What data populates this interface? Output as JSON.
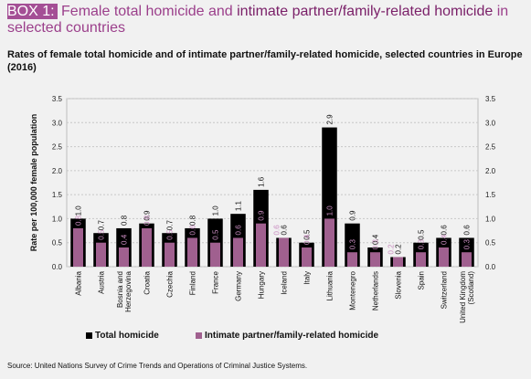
{
  "header": {
    "box_label": "BOX 1:",
    "title_pre": " Female total homicide and ",
    "title_highlight": "intimate partner/family-related homicide",
    "title_post": " in selected countries",
    "subtitle": "Rates of female total homicide and of intimate partner/family-related homicide, selected countries in Europe (2016)"
  },
  "colors": {
    "total": "#000000",
    "ipfr": "#a0608f",
    "ipfr_label": "#c98cc0"
  },
  "legend": {
    "total_label": "Total homicide",
    "ipfr_label": "Intimate partner/family-related homicide"
  },
  "source": "Source: United Nations Survey of Crime Trends and Operations of Criminal Justice Systems.",
  "chart_data": {
    "type": "bar",
    "ylabel": "Rate per 100,000 female population",
    "ylim": [
      0,
      3.5
    ],
    "yticks": [
      "0.0",
      "0.5",
      "1.0",
      "1.5",
      "2.0",
      "2.5",
      "3.0",
      "3.5"
    ],
    "grid": true,
    "categories": [
      "Albania",
      "Austria",
      "Bosnia and Herzegovina",
      "Croatia",
      "Czechia",
      "Finland",
      "France",
      "Germany",
      "Hungary",
      "Iceland",
      "Italy",
      "Lithuania",
      "Montenegro",
      "Netherlands",
      "Slovenia",
      "Spain",
      "Switzerland",
      "United Kingdom (Scotland)"
    ],
    "series": [
      {
        "name": "Total homicide",
        "values": [
          1.0,
          0.7,
          0.8,
          0.9,
          0.7,
          0.8,
          1.0,
          1.1,
          1.6,
          0.6,
          0.5,
          2.9,
          0.9,
          0.4,
          0.2,
          0.5,
          0.6,
          0.6
        ],
        "labels": [
          "1.0",
          "0.7",
          "0.8",
          "0.9",
          "0.7",
          "0.8",
          "1.0",
          "1.1",
          "1.6",
          "0.6",
          "0.5",
          "2.9",
          "0.9",
          "0.4",
          "0.2",
          "0.5",
          "0.6",
          "0.6"
        ]
      },
      {
        "name": "Intimate partner/family-related homicide",
        "values": [
          0.8,
          0.5,
          0.4,
          0.8,
          0.5,
          0.6,
          0.5,
          0.6,
          0.9,
          0.6,
          0.4,
          1.0,
          0.3,
          0.3,
          0.2,
          0.3,
          0.4,
          0.3
        ],
        "labels": [
          "0.8",
          "0.5",
          "0.4",
          "0.8",
          "0.5",
          "0.6",
          "0.5",
          "0.6",
          "0.9",
          "0.6",
          "0.4",
          "1.0",
          "0.3",
          "0.3",
          "0.2",
          "0.3",
          "0.4",
          "0.3"
        ]
      }
    ],
    "category_labels": [
      [
        "Albania"
      ],
      [
        "Austria"
      ],
      [
        "Bosnia and",
        "Herzegovina"
      ],
      [
        "Croatia"
      ],
      [
        "Czechia"
      ],
      [
        "Finland"
      ],
      [
        "France"
      ],
      [
        "Germany"
      ],
      [
        "Hungary"
      ],
      [
        "Iceland"
      ],
      [
        "Italy"
      ],
      [
        "Lithuania"
      ],
      [
        "Montenegro"
      ],
      [
        "Netherlands"
      ],
      [
        "Slovenia"
      ],
      [
        "Spain"
      ],
      [
        "Switzerland"
      ],
      [
        "United Kingdom",
        "(Scotland)"
      ]
    ]
  }
}
